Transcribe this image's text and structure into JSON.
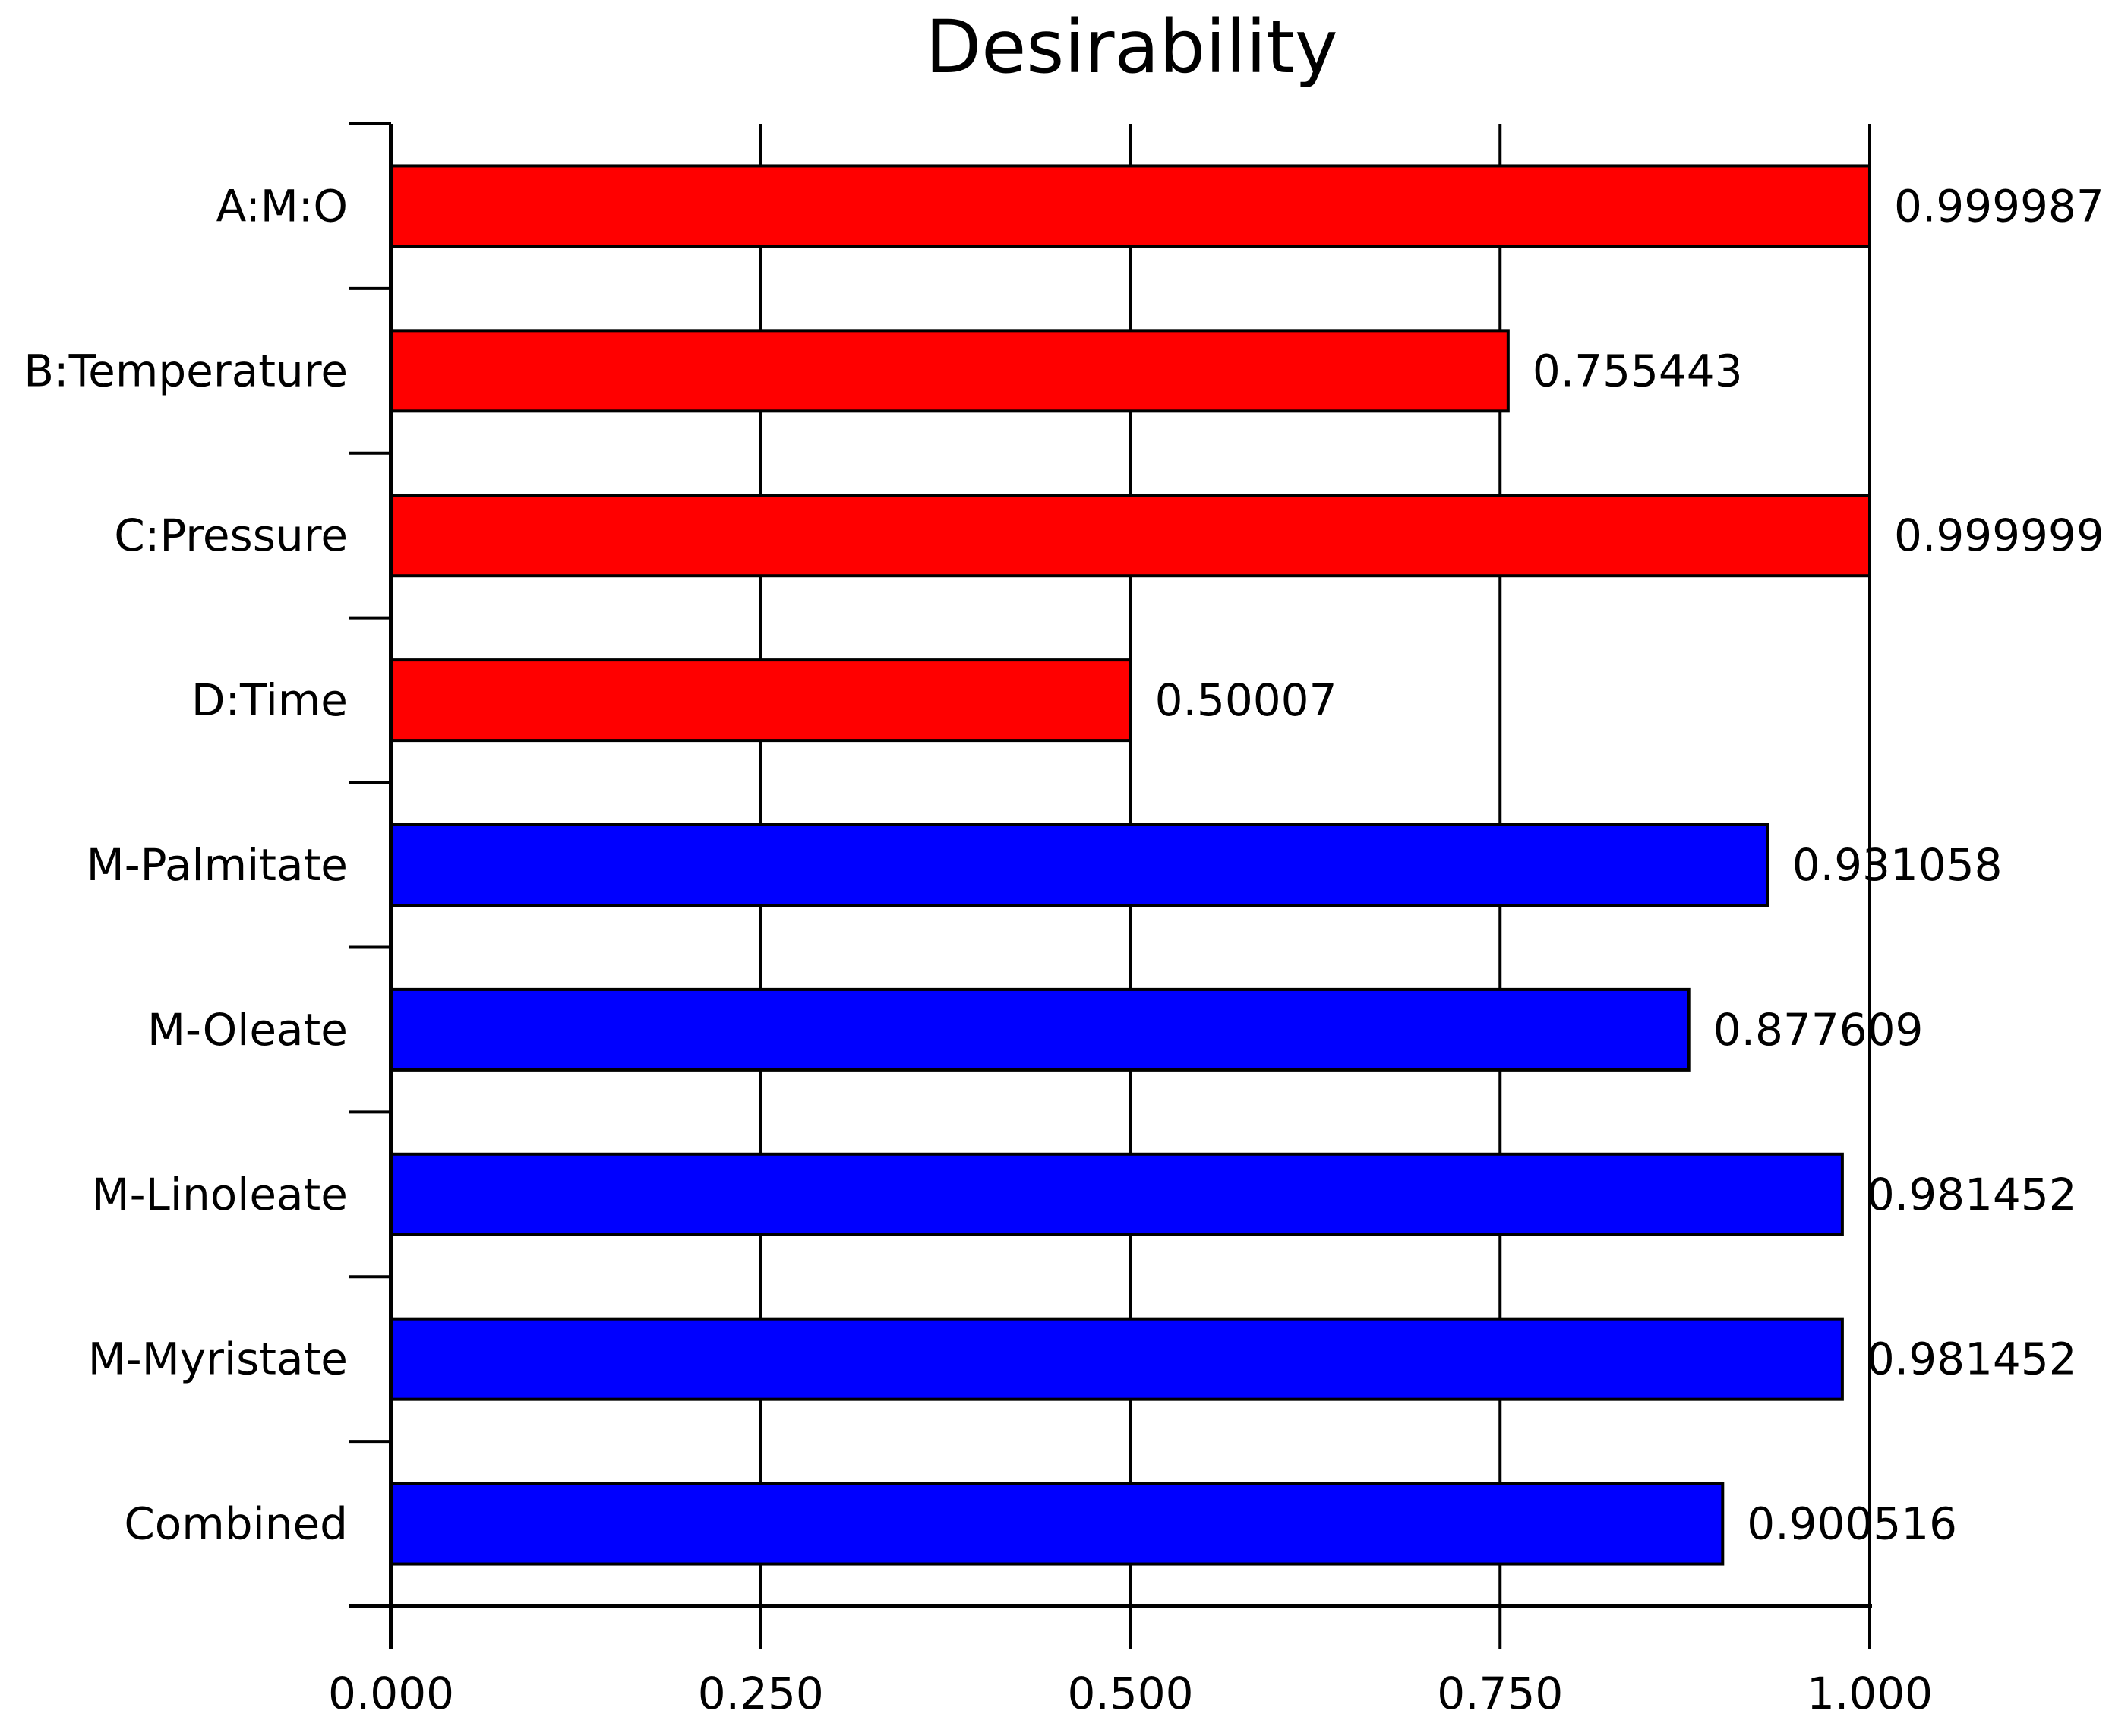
{
  "chart_data": {
    "type": "bar",
    "orientation": "horizontal",
    "title": "Desirability",
    "xlabel": "",
    "ylabel": "",
    "xlim": [
      0,
      1
    ],
    "x_ticks": [
      "0.000",
      "0.250",
      "0.500",
      "0.750",
      "1.000"
    ],
    "x_tick_values": [
      0,
      0.25,
      0.5,
      0.75,
      1.0
    ],
    "grid": true,
    "categories": [
      "A:M:O",
      "B:Temperature",
      "C:Pressure",
      "D:Time",
      "M-Palmitate",
      "M-Oleate",
      "M-Linoleate",
      "M-Myristate",
      "Combined"
    ],
    "values": [
      0.999987,
      0.755443,
      0.999999,
      0.50007,
      0.931058,
      0.877609,
      0.981452,
      0.981452,
      0.900516
    ],
    "value_labels": [
      "0.999987",
      "0.755443",
      "0.999999",
      "0.50007",
      "0.931058",
      "0.877609",
      "0.981452",
      "0.981452",
      "0.900516"
    ],
    "bar_colors": [
      "#ff0000",
      "#ff0000",
      "#ff0000",
      "#ff0000",
      "#0000ff",
      "#0000ff",
      "#0000ff",
      "#0000ff",
      "#0000ff"
    ]
  }
}
